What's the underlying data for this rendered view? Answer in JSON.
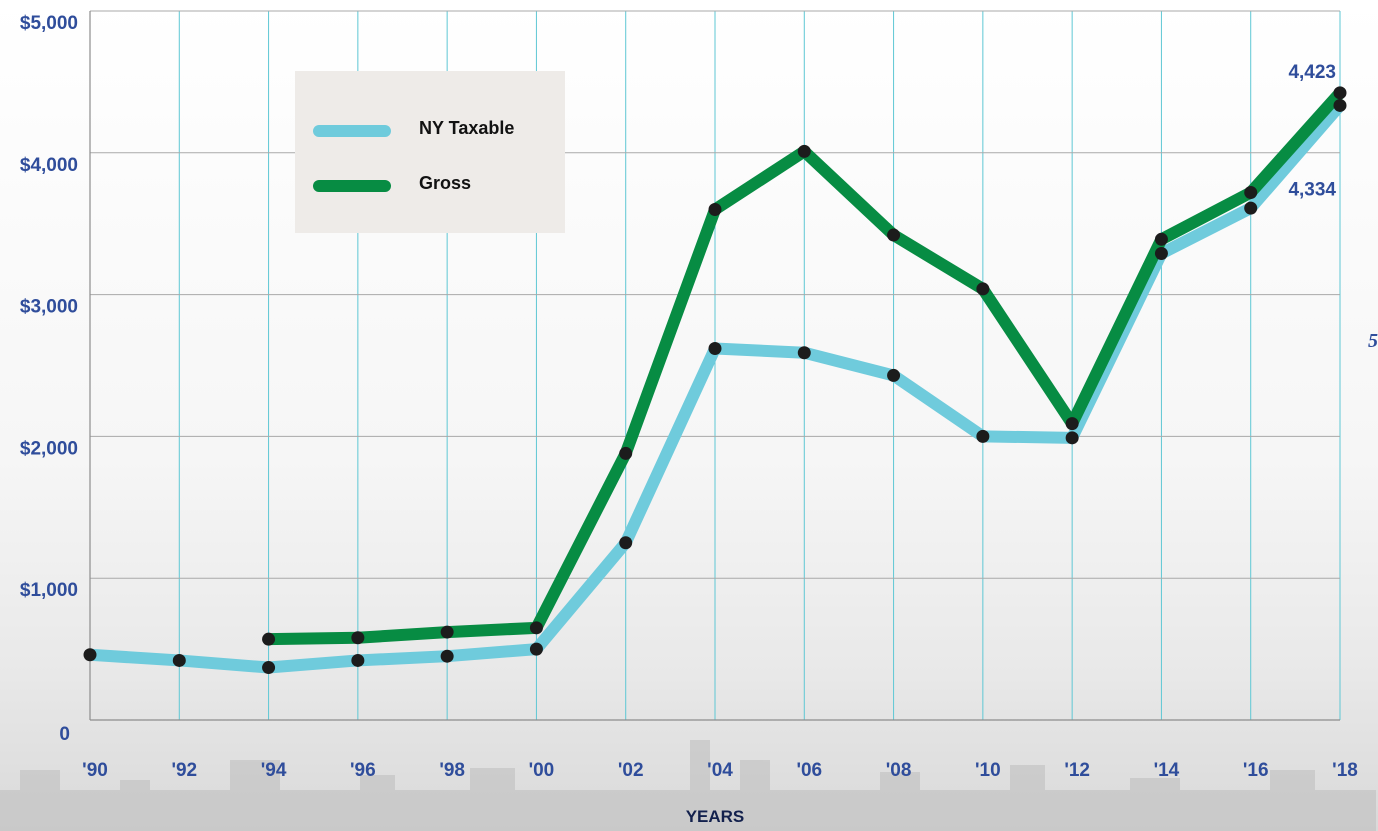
{
  "chart_data": {
    "type": "line",
    "categories": [
      "'90",
      "'92",
      "'94",
      "'96",
      "'98",
      "'00",
      "'02",
      "'04",
      "'06",
      "'08",
      "'10",
      "'12",
      "'14",
      "'16",
      "'18"
    ],
    "y_ticks": [
      "0",
      "$1,000",
      "$2,000",
      "$3,000",
      "$4,000",
      "$5,000"
    ],
    "ylim": [
      0,
      5000
    ],
    "xlabel": "YEARS",
    "ylabel": "",
    "grid": true,
    "legend_placement": "top-left",
    "series": [
      {
        "name": "NY Taxable",
        "color": "#6fcbdc",
        "values": [
          460,
          420,
          370,
          420,
          450,
          500,
          1250,
          2620,
          2590,
          2430,
          2000,
          1990,
          3290,
          3610,
          4334
        ]
      },
      {
        "name": "Gross",
        "color": "#078c43",
        "values": [
          null,
          null,
          570,
          580,
          620,
          650,
          1880,
          3600,
          4010,
          3420,
          3040,
          2090,
          3390,
          3720,
          4423
        ]
      }
    ],
    "annotations": [
      {
        "series": "Gross",
        "category": "'18",
        "text": "4,423"
      },
      {
        "series": "NY Taxable",
        "category": "'18",
        "text": "4,334"
      }
    ]
  },
  "edge_glyph": "5"
}
